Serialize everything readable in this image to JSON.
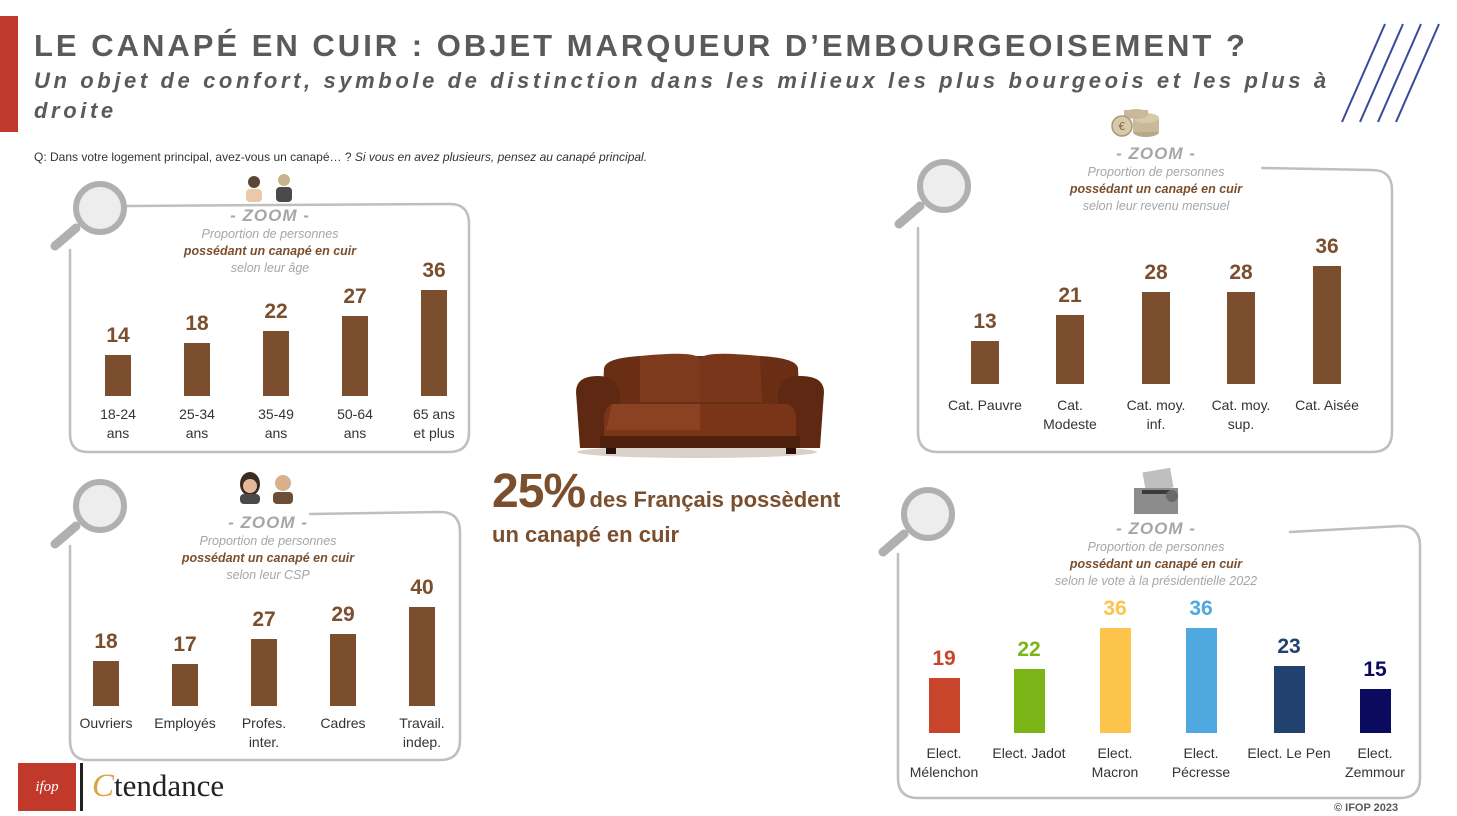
{
  "header": {
    "title": "LE CANAPÉ EN CUIR : OBJET MARQUEUR D’EMBOURGEOISEMENT ?",
    "subtitle": "Un objet de confort, symbole de distinction dans les milieux les plus bourgeois et les plus à droite"
  },
  "question": {
    "main": "Q: Dans votre logement principal, avez-vous un canapé… ?",
    "note": "Si vous en avez plusieurs, pensez au canapé principal."
  },
  "headline": {
    "percent": "25%",
    "text1": "des Français possèdent",
    "text2": "un canapé en cuir"
  },
  "footer": {
    "copyright": "© IFOP 2023",
    "ifop_logo": "ifop",
    "tendance_c": "C",
    "tendance_text": "tendance"
  },
  "colors": {
    "accent": "#C0392B",
    "brown": "#7B4F2E",
    "zoom_grey": "#A6A6A6"
  },
  "chart_data": [
    {
      "type": "bar",
      "zoom": "- ZOOM -",
      "title_line1": "Proportion de personnes",
      "title_bold": "possédant un canapé en cuir",
      "title_line3": "selon leur âge",
      "categories": [
        "18-24\nans",
        "25-34\nans",
        "35-49\nans",
        "50-64\nans",
        "65 ans\net plus"
      ],
      "values": [
        14,
        18,
        22,
        27,
        36
      ],
      "colors": [
        "#7B4F2E",
        "#7B4F2E",
        "#7B4F2E",
        "#7B4F2E",
        "#7B4F2E"
      ],
      "ylim": [
        0,
        40
      ]
    },
    {
      "type": "bar",
      "zoom": "- ZOOM -",
      "title_line1": "Proportion de personnes",
      "title_bold": "possédant un canapé en cuir",
      "title_line3": "selon leur revenu mensuel",
      "categories": [
        "Cat. Pauvre",
        "Cat.\nModeste",
        "Cat. moy.\ninf.",
        "Cat. moy.\nsup.",
        "Cat. Aisée"
      ],
      "values": [
        13,
        21,
        28,
        28,
        36
      ],
      "colors": [
        "#7B4F2E",
        "#7B4F2E",
        "#7B4F2E",
        "#7B4F2E",
        "#7B4F2E"
      ],
      "ylim": [
        0,
        40
      ]
    },
    {
      "type": "bar",
      "zoom": "- ZOOM -",
      "title_line1": "Proportion de personnes",
      "title_bold": "possédant un canapé en cuir",
      "title_line3": "selon leur CSP",
      "categories": [
        "Ouvriers",
        "Employés",
        "Profes.\ninter.",
        "Cadres",
        "Travail.\nindep."
      ],
      "values": [
        18,
        17,
        27,
        29,
        40
      ],
      "colors": [
        "#7B4F2E",
        "#7B4F2E",
        "#7B4F2E",
        "#7B4F2E",
        "#7B4F2E"
      ],
      "ylim": [
        0,
        40
      ]
    },
    {
      "type": "bar",
      "zoom": "- ZOOM -",
      "title_line1": "Proportion de personnes",
      "title_bold": "possédant un canapé en cuir",
      "title_line3": "selon le vote à la présidentielle 2022",
      "categories": [
        "Elect.\nMélenchon",
        "Elect. Jadot",
        "Elect.\nMacron",
        "Elect.\nPécresse",
        "Elect. Le Pen",
        "Elect.\nZemmour"
      ],
      "values": [
        19,
        22,
        36,
        36,
        23,
        15
      ],
      "colors": [
        "#C8442B",
        "#7CB518",
        "#FCC44A",
        "#4FA8E0",
        "#22416E",
        "#0A0A5E"
      ],
      "ylim": [
        0,
        40
      ]
    }
  ]
}
